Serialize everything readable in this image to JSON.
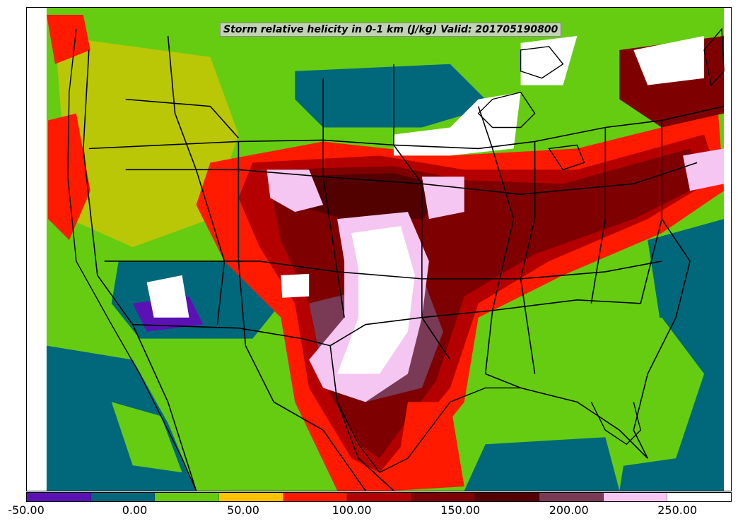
{
  "title": "Storm relative helicity in 0-1 km (J/kg) Valid: 201705190800",
  "colorbar": {
    "min": -50,
    "max": 275,
    "ticks": [
      "-50.00",
      "0.00",
      "50.00",
      "100.00",
      "150.00",
      "200.00",
      "250.00"
    ],
    "colors": [
      "#5a12b4",
      "#00687a",
      "#66cc11",
      "#ffc200",
      "#ff1a00",
      "#b50000",
      "#7f0000",
      "#520000",
      "#7a3a55",
      "#f5c6f2",
      "#ffffff"
    ]
  },
  "palette": {
    "purple": "#5a12b4",
    "teal": "#00687a",
    "green": "#66cc11",
    "yellow": "#ffc200",
    "red": "#ff1a00",
    "darkred": "#b50000",
    "maroon": "#7f0000",
    "darkmaroon": "#520000",
    "mauve": "#7a3a55",
    "pink": "#f5c6f2",
    "white": "#ffffff"
  }
}
